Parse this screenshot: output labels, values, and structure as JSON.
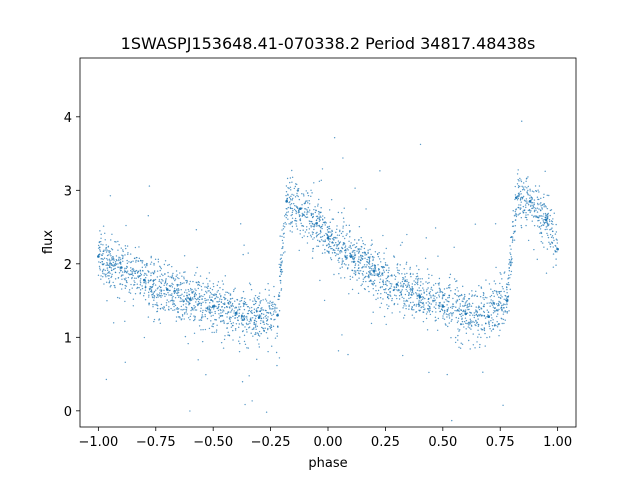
{
  "chart_data": {
    "type": "scatter",
    "title": "1SWASPJ153648.41-070338.2 Period 34817.48438s",
    "xlabel": "phase",
    "ylabel": "flux",
    "xlim": [
      -1.08,
      1.08
    ],
    "ylim": [
      -0.22,
      4.8
    ],
    "x_ticks": [
      -1.0,
      -0.75,
      -0.5,
      -0.25,
      0.0,
      0.25,
      0.5,
      0.75,
      1.0
    ],
    "x_tick_labels": [
      "−1.00",
      "−0.75",
      "−0.50",
      "−0.25",
      "0.00",
      "0.25",
      "0.50",
      "0.75",
      "1.00"
    ],
    "y_ticks": [
      0,
      1,
      2,
      3,
      4
    ],
    "y_tick_labels": [
      "0",
      "1",
      "2",
      "3",
      "4"
    ],
    "grid": false,
    "legend": "none",
    "marker_color": "#1f77b4",
    "series": [
      {
        "phase": [
          -1.0,
          -0.9,
          -0.8,
          -0.7,
          -0.6,
          -0.5,
          -0.4,
          -0.3,
          -0.22,
          -0.18,
          -0.12,
          -0.05,
          0.0,
          0.1,
          0.2,
          0.3,
          0.4,
          0.5,
          0.6,
          0.7,
          0.78,
          0.82,
          0.88,
          0.95,
          1.0
        ],
        "flux": [
          2.1,
          1.95,
          1.78,
          1.65,
          1.52,
          1.42,
          1.33,
          1.27,
          1.3,
          2.85,
          2.75,
          2.55,
          2.35,
          2.1,
          1.9,
          1.72,
          1.55,
          1.42,
          1.32,
          1.28,
          1.5,
          2.9,
          2.85,
          2.6,
          2.2
        ]
      }
    ]
  }
}
